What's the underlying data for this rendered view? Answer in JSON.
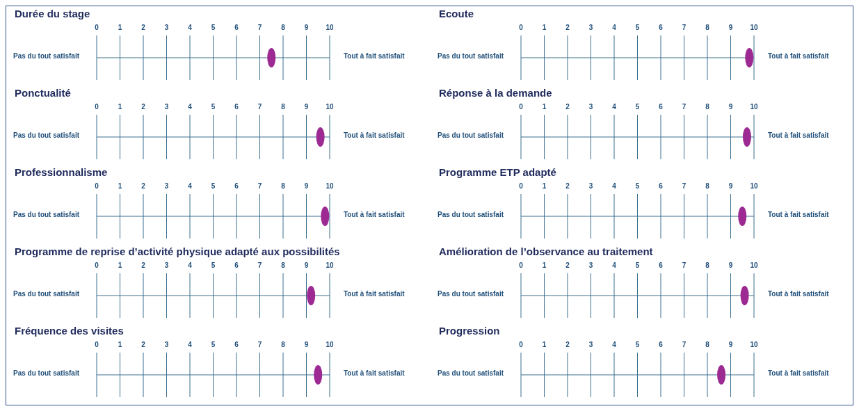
{
  "chart_data": [
    {
      "type": "scatter",
      "orientation": "horizontal",
      "title": "Durée du stage",
      "categories": [
        null
      ],
      "values": [
        7.5
      ],
      "color": "#9c2a92",
      "marker": "circle",
      "xlim": [
        0,
        10
      ],
      "xticks": [
        0,
        1,
        2,
        3,
        4,
        5,
        6,
        7,
        8,
        9,
        10
      ],
      "tick_labels": "x",
      "grid": true,
      "annotations": [
        "Pas du tout satisfait",
        "Tout à fait satisfait"
      ]
    },
    {
      "type": "scatter",
      "orientation": "horizontal",
      "title": "Ecoute",
      "categories": [
        null
      ],
      "values": [
        9.8
      ],
      "color": "#9c2a92",
      "marker": "circle",
      "xlim": [
        0,
        10
      ],
      "xticks": [
        0,
        1,
        2,
        3,
        4,
        5,
        6,
        7,
        8,
        9,
        10
      ],
      "tick_labels": "x",
      "grid": true,
      "annotations": [
        "Pas du tout satisfait",
        "Tout à fait satisfait"
      ]
    },
    {
      "type": "scatter",
      "orientation": "horizontal",
      "title": "Ponctualité",
      "categories": [
        null
      ],
      "values": [
        9.6
      ],
      "color": "#9c2a92",
      "marker": "circle",
      "xlim": [
        0,
        10
      ],
      "xticks": [
        0,
        1,
        2,
        3,
        4,
        5,
        6,
        7,
        8,
        9,
        10
      ],
      "tick_labels": "x",
      "grid": true,
      "annotations": [
        "Pas du tout satisfait",
        "Tout à fait satisfait"
      ]
    },
    {
      "type": "scatter",
      "orientation": "horizontal",
      "title": "Réponse à la demande",
      "categories": [
        null
      ],
      "values": [
        9.7
      ],
      "color": "#9c2a92",
      "marker": "circle",
      "xlim": [
        0,
        10
      ],
      "xticks": [
        0,
        1,
        2,
        3,
        4,
        5,
        6,
        7,
        8,
        9,
        10
      ],
      "tick_labels": "x",
      "grid": true,
      "annotations": [
        "Pas du tout satisfait",
        "Tout à fait satisfait"
      ]
    },
    {
      "type": "scatter",
      "orientation": "horizontal",
      "title": "Professionnalisme",
      "categories": [
        null
      ],
      "values": [
        9.8
      ],
      "color": "#9c2a92",
      "marker": "circle",
      "xlim": [
        0,
        10
      ],
      "xticks": [
        0,
        1,
        2,
        3,
        4,
        5,
        6,
        7,
        8,
        9,
        10
      ],
      "tick_labels": "x",
      "grid": true,
      "annotations": [
        "Pas du tout satisfait",
        "Tout à fait satisfait"
      ]
    },
    {
      "type": "scatter",
      "orientation": "horizontal",
      "title": "Programme ETP adapté",
      "categories": [
        null
      ],
      "values": [
        9.5
      ],
      "color": "#9c2a92",
      "marker": "circle",
      "xlim": [
        0,
        10
      ],
      "xticks": [
        0,
        1,
        2,
        3,
        4,
        5,
        6,
        7,
        8,
        9,
        10
      ],
      "tick_labels": "x",
      "grid": true,
      "annotations": [
        "Pas du tout satisfait",
        "Tout à fait satisfait"
      ]
    },
    {
      "type": "scatter",
      "orientation": "horizontal",
      "title": "Programme de reprise d’activité physique adapté aux possibilités",
      "categories": [
        null
      ],
      "values": [
        9.2
      ],
      "color": "#9c2a92",
      "marker": "circle",
      "xlim": [
        0,
        10
      ],
      "xticks": [
        0,
        1,
        2,
        3,
        4,
        5,
        6,
        7,
        8,
        9,
        10
      ],
      "tick_labels": "x",
      "grid": true,
      "annotations": [
        "Pas du tout satisfait",
        "Tout à fait satisfait"
      ]
    },
    {
      "type": "scatter",
      "orientation": "horizontal",
      "title": "Amélioration de l’observance au traitement",
      "categories": [
        null
      ],
      "values": [
        9.6
      ],
      "color": "#9c2a92",
      "marker": "circle",
      "xlim": [
        0,
        10
      ],
      "xticks": [
        0,
        1,
        2,
        3,
        4,
        5,
        6,
        7,
        8,
        9,
        10
      ],
      "tick_labels": "x",
      "grid": true,
      "annotations": [
        "Pas du tout satisfait",
        "Tout à fait satisfait"
      ]
    },
    {
      "type": "scatter",
      "orientation": "horizontal",
      "title": "Fréquence des visites",
      "categories": [
        null
      ],
      "values": [
        9.5
      ],
      "color": "#9c2a92",
      "marker": "circle",
      "xlim": [
        0,
        10
      ],
      "xticks": [
        0,
        1,
        2,
        3,
        4,
        5,
        6,
        7,
        8,
        9,
        10
      ],
      "tick_labels": "x",
      "grid": true,
      "annotations": [
        "Pas du tout satisfait",
        "Tout à fait satisfait"
      ]
    },
    {
      "type": "scatter",
      "orientation": "horizontal",
      "title": "Progression",
      "categories": [
        null
      ],
      "values": [
        8.6
      ],
      "color": "#9c2a92",
      "marker": "circle",
      "xlim": [
        0,
        10
      ],
      "xticks": [
        0,
        1,
        2,
        3,
        4,
        5,
        6,
        7,
        8,
        9,
        10
      ],
      "tick_labels": "x",
      "grid": true,
      "annotations": [
        "Pas du tout satisfait",
        "Tout à fait satisfait"
      ]
    }
  ]
}
